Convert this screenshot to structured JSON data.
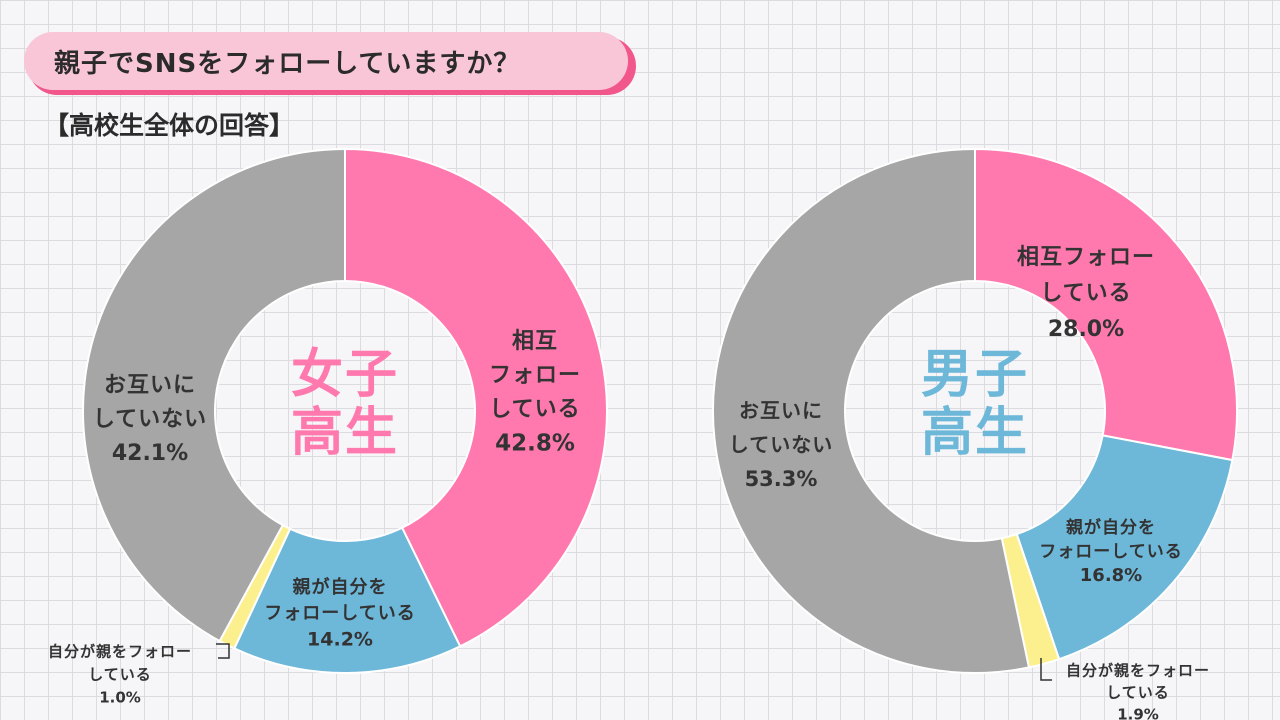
{
  "header": {
    "title": "親子でSNSをフォローしていますか？",
    "subtitle": "【高校生全体の回答】"
  },
  "colors": {
    "mutual": "#ff78ae",
    "parent_follows": "#6db7d9",
    "child_follows": "#fcf08e",
    "none": "#a6a6a6",
    "girls_label": "#ff78ae",
    "boys_label": "#6db7d9"
  },
  "chart_data": [
    {
      "type": "pie",
      "center_label": [
        "女子",
        "高生"
      ],
      "categories": [
        "相互フォローしている",
        "親が自分をフォローしている",
        "自分が親をフォローしている",
        "お互いにしていない"
      ],
      "values": [
        42.8,
        14.2,
        1.0,
        42.1
      ],
      "labels": [
        {
          "lines": [
            "相互",
            "フォロー",
            "している"
          ],
          "value": "42.8%"
        },
        {
          "lines": [
            "親が自分を",
            "フォローしている"
          ],
          "value": "14.2%"
        },
        {
          "lines": [
            "自分が親をフォロー",
            "している"
          ],
          "value": "1.0%"
        },
        {
          "lines": [
            "お互いに",
            "していない"
          ],
          "value": "42.1%"
        }
      ]
    },
    {
      "type": "pie",
      "center_label": [
        "男子",
        "高生"
      ],
      "categories": [
        "相互フォローしている",
        "親が自分をフォローしている",
        "自分が親をフォローしている",
        "お互いにしていない"
      ],
      "values": [
        28.0,
        16.8,
        1.9,
        53.3
      ],
      "labels": [
        {
          "lines": [
            "相互フォロー",
            "している"
          ],
          "value": "28.0%"
        },
        {
          "lines": [
            "親が自分を",
            "フォローしている"
          ],
          "value": "16.8%"
        },
        {
          "lines": [
            "自分が親をフォロー",
            "している"
          ],
          "value": "1.9%"
        },
        {
          "lines": [
            "お互いに",
            "していない"
          ],
          "value": "53.3%"
        }
      ]
    }
  ]
}
